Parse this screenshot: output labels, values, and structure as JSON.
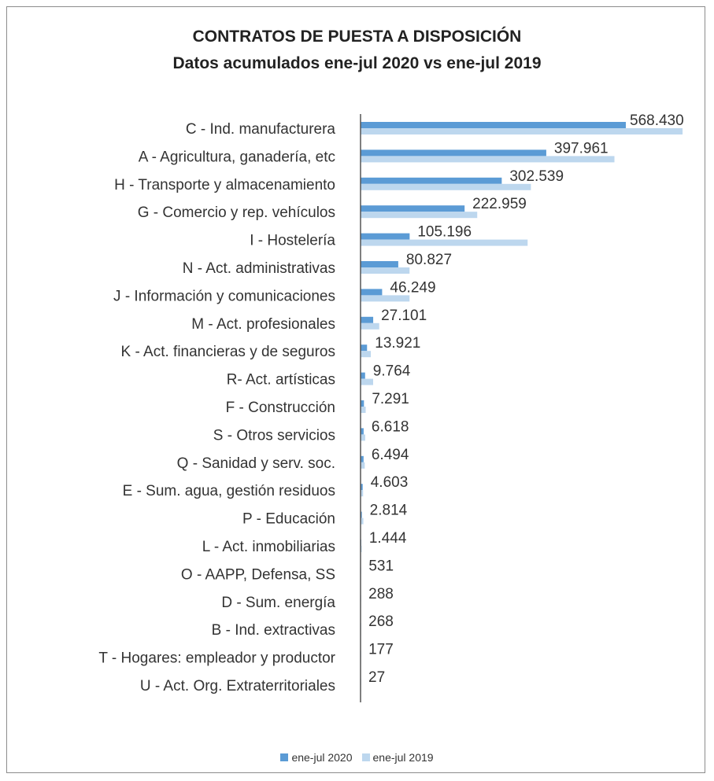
{
  "chart_data": {
    "type": "bar",
    "orientation": "horizontal",
    "title": "CONTRATOS DE PUESTA A DISPOSICIÓN",
    "subtitle": "Datos acumulados ene-jul 2020 vs ene-jul 2019",
    "categories": [
      "C - Ind. manufacturera",
      "A - Agricultura, ganadería, etc",
      "H - Transporte y almacenamiento",
      "G - Comercio y rep. vehículos",
      "I - Hostelería",
      "N - Act. administrativas",
      "J - Información y comunicaciones",
      "M - Act. profesionales",
      "K - Act. financieras y de seguros",
      "R-  Act. artísticas",
      "F - Construcción",
      "S - Otros servicios",
      "Q - Sanidad y serv. soc.",
      "E - Sum. agua, gestión residuos",
      "P - Educación",
      "L - Act. inmobiliarias",
      "O - AAPP, Defensa, SS",
      "D - Sum. energía",
      "B - Ind. extractivas",
      "T - Hogares: empleador y productor",
      "U - Act. Org. Extraterritoriales"
    ],
    "data_labels": [
      "568.430",
      "397.961",
      "302.539",
      "222.959",
      "105.196",
      "80.827",
      "46.249",
      "27.101",
      "13.921",
      "9.764",
      "7.291",
      "6.618",
      "6.494",
      "4.603",
      "2.814",
      "1.444",
      "531",
      "288",
      "268",
      "177",
      "27"
    ],
    "series": [
      {
        "name": "ene-jul 2020",
        "color": "#5b9bd5",
        "values": [
          568430,
          397961,
          302539,
          222959,
          105196,
          80827,
          46249,
          27101,
          13921,
          9764,
          7291,
          6618,
          6494,
          4603,
          2814,
          1444,
          531,
          288,
          268,
          177,
          27
        ]
      },
      {
        "name": "ene-jul 2019",
        "color": "#bdd7ee",
        "values": [
          690000,
          544000,
          365000,
          250000,
          358000,
          105000,
          105000,
          40000,
          22000,
          27000,
          11000,
          10000,
          9000,
          5500,
          6000,
          2500,
          1000,
          500,
          400,
          300,
          50
        ]
      }
    ],
    "xlim": [
      0,
      700000
    ],
    "x_axis_visible": false,
    "grid": false,
    "legend_position": "bottom"
  }
}
